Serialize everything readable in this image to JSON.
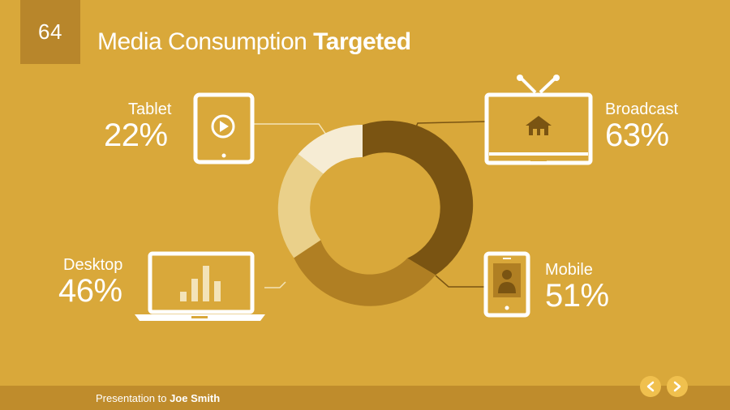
{
  "slide": {
    "number": "64",
    "title_regular": "Media Consumption",
    "title_bold": "Targeted"
  },
  "segments": [
    {
      "name": "Tablet",
      "percent": "22%"
    },
    {
      "name": "Desktop",
      "percent": "46%"
    },
    {
      "name": "Broadcast",
      "percent": "63%"
    },
    {
      "name": "Mobile",
      "percent": "51%"
    }
  ],
  "footer": {
    "prefix": "Presentation to",
    "presenter": "Joe Smith"
  },
  "icons": {
    "tablet": "play-icon",
    "broadcast": "tv-home-icon",
    "desktop": "laptop-bars-icon",
    "mobile": "phone-person-icon",
    "prev": "chevron-left-icon",
    "next": "chevron-right-icon"
  },
  "colors": {
    "background": "#d9a83a",
    "dark_brown": "#7a5412",
    "mid_brown": "#b07f23",
    "light_tan": "#ead08a",
    "cream": "#f6ecd4",
    "footer": "#bf8c2c"
  }
}
